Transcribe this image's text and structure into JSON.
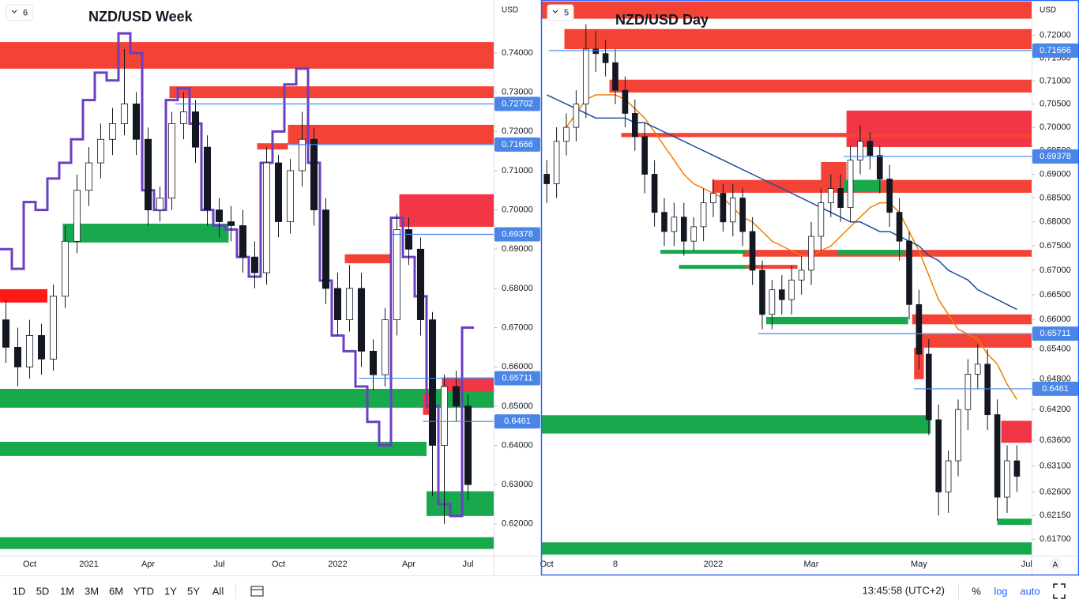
{
  "chart_data": [
    {
      "type": "candlestick",
      "title": "NZD/USD Week",
      "badge": "6",
      "currency": "USD",
      "log_scale": false,
      "grid": false,
      "up_color": "#ffffff",
      "down_color": "#131722",
      "level_color": "#4a86e8",
      "categories": [
        null,
        null,
        "Oct",
        null,
        null,
        null,
        null,
        "2021",
        null,
        null,
        null,
        null,
        "Apr",
        null,
        null,
        null,
        null,
        null,
        "Jul",
        null,
        null,
        null,
        null,
        "Oct",
        null,
        null,
        null,
        null,
        "2022",
        null,
        null,
        null,
        null,
        null,
        "Apr",
        null,
        null,
        null,
        null,
        "Jul"
      ],
      "open": [
        0.672,
        0.665,
        0.66,
        0.668,
        0.662,
        0.678,
        0.692,
        0.705,
        0.712,
        0.718,
        0.722,
        0.727,
        0.718,
        0.7,
        0.703,
        0.722,
        0.725,
        0.716,
        0.7,
        0.697,
        0.696,
        0.688,
        0.684,
        0.712,
        0.697,
        0.71,
        0.718,
        0.7,
        0.68,
        0.672,
        0.68,
        0.664,
        0.658,
        0.672,
        0.695,
        0.69,
        0.672,
        0.64,
        0.655,
        0.65
      ],
      "high": [
        0.677,
        0.67,
        0.672,
        0.671,
        0.681,
        0.696,
        0.709,
        0.716,
        0.722,
        0.726,
        0.741,
        0.73,
        0.721,
        0.706,
        0.725,
        0.73,
        0.728,
        0.719,
        0.703,
        0.701,
        0.7,
        0.692,
        0.716,
        0.714,
        0.713,
        0.725,
        0.721,
        0.703,
        0.684,
        0.686,
        0.684,
        0.667,
        0.675,
        0.699,
        0.698,
        0.693,
        0.674,
        0.658,
        0.659,
        0.653
      ],
      "low": [
        0.661,
        0.655,
        0.657,
        0.658,
        0.659,
        0.675,
        0.689,
        0.701,
        0.708,
        0.714,
        0.719,
        0.714,
        0.696,
        0.697,
        0.7,
        0.718,
        0.712,
        0.696,
        0.693,
        0.692,
        0.684,
        0.68,
        0.681,
        0.693,
        0.694,
        0.706,
        0.696,
        0.676,
        0.668,
        0.669,
        0.66,
        0.654,
        0.655,
        0.668,
        0.686,
        0.668,
        0.627,
        0.62,
        0.646,
        0.626
      ],
      "close": [
        0.665,
        0.66,
        0.668,
        0.662,
        0.678,
        0.692,
        0.705,
        0.712,
        0.718,
        0.722,
        0.727,
        0.718,
        0.7,
        0.703,
        0.722,
        0.725,
        0.716,
        0.7,
        0.697,
        0.696,
        0.688,
        0.684,
        0.712,
        0.697,
        0.71,
        0.718,
        0.7,
        0.68,
        0.672,
        0.68,
        0.664,
        0.658,
        0.672,
        0.695,
        0.69,
        0.672,
        0.64,
        0.655,
        0.65,
        0.63
      ],
      "series": [
        {
          "color": "#6a3fc0",
          "values": [
            0.69,
            0.685,
            0.702,
            0.7,
            0.708,
            0.712,
            0.718,
            0.728,
            0.735,
            0.733,
            0.745,
            0.74,
            0.705,
            0.7,
            0.728,
            0.731,
            0.722,
            0.7,
            0.696,
            0.695,
            0.688,
            0.683,
            0.712,
            0.72,
            0.732,
            0.736,
            0.712,
            0.682,
            0.668,
            0.664,
            0.655,
            0.646,
            0.64,
            0.698,
            0.688,
            0.678,
            0.65,
            0.625,
            0.622,
            0.67
          ]
        }
      ],
      "zones": [
        {
          "from": 0,
          "to": 41.7,
          "low": 0.736,
          "high": 0.7428,
          "color": "#f44336"
        },
        {
          "from": 14.3,
          "to": 41.7,
          "low": 0.7285,
          "high": 0.7315,
          "color": "#f44336"
        },
        {
          "from": 24.3,
          "to": 41.7,
          "low": 0.7168,
          "high": 0.7217,
          "color": "#f44336"
        },
        {
          "from": 21.7,
          "to": 24.3,
          "low": 0.7154,
          "high": 0.717,
          "color": "#f44336"
        },
        {
          "from": 33.7,
          "to": 41.7,
          "low": 0.6957,
          "high": 0.704,
          "color": "#f23645"
        },
        {
          "from": 5.3,
          "to": 19.3,
          "low": 0.6917,
          "high": 0.6965,
          "color": "#18a94d"
        },
        {
          "from": 29.1,
          "to": 33,
          "low": 0.6864,
          "high": 0.6887,
          "color": "#f44336"
        },
        {
          "from": 0,
          "to": 4,
          "low": 0.6764,
          "high": 0.6798,
          "color": "#ff1a1a"
        },
        {
          "from": 0,
          "to": 41.7,
          "low": 0.6496,
          "high": 0.6544,
          "color": "#18a94d"
        },
        {
          "from": 37.3,
          "to": 41.7,
          "low": 0.6538,
          "high": 0.6573,
          "color": "#f23645"
        },
        {
          "from": 35.7,
          "to": 36.3,
          "low": 0.6478,
          "high": 0.6534,
          "color": "#f23645"
        },
        {
          "from": 0,
          "to": 36,
          "low": 0.6373,
          "high": 0.6409,
          "color": "#18a94d"
        },
        {
          "from": 36,
          "to": 41.7,
          "low": 0.622,
          "high": 0.6283,
          "color": "#18a94d"
        },
        {
          "from": 0,
          "to": 41.7,
          "low": 0.6136,
          "high": 0.6166,
          "color": "#18a94d"
        }
      ],
      "levels": [
        {
          "value": 0.72702,
          "from": 14.8
        },
        {
          "value": 0.71666,
          "from": 24.3
        },
        {
          "value": 0.69378,
          "from": 33
        },
        {
          "value": 0.65711,
          "from": 30.3
        },
        {
          "value": 0.6461,
          "from": 35.7
        }
      ],
      "ylim": [
        0.6119,
        0.7535
      ],
      "yticks": [
        {
          "value": 0.74,
          "label": "0.74000"
        },
        {
          "value": 0.73,
          "label": "0.73000"
        },
        {
          "value": 0.72,
          "label": "0.72000"
        },
        {
          "value": 0.71,
          "label": "0.71000"
        },
        {
          "value": 0.7,
          "label": "0.70000"
        },
        {
          "value": 0.69,
          "label": "0.69000"
        },
        {
          "value": 0.68,
          "label": "0.68000"
        },
        {
          "value": 0.67,
          "label": "0.67000"
        },
        {
          "value": 0.66,
          "label": "0.66000"
        },
        {
          "value": 0.65,
          "label": "0.65000"
        },
        {
          "value": 0.64,
          "label": "0.64000"
        },
        {
          "value": 0.63,
          "label": "0.63000"
        },
        {
          "value": 0.62,
          "label": "0.62000"
        }
      ]
    },
    {
      "type": "candlestick",
      "title": "NZD/USD Day",
      "badge": "5",
      "currency": "USD",
      "log_scale": true,
      "grid": false,
      "up_color": "#ffffff",
      "down_color": "#131722",
      "level_color": "#4a86e8",
      "categories": [
        "Oct",
        null,
        null,
        null,
        null,
        null,
        null,
        "8",
        null,
        null,
        null,
        null,
        null,
        null,
        null,
        null,
        null,
        "2022",
        null,
        null,
        null,
        null,
        null,
        null,
        null,
        null,
        null,
        "Mar",
        null,
        null,
        null,
        null,
        null,
        null,
        null,
        null,
        null,
        null,
        "May",
        null,
        null,
        null,
        null,
        null,
        null,
        null,
        null,
        null,
        null,
        "Jul"
      ],
      "open": [
        0.69,
        0.688,
        0.697,
        0.7,
        0.705,
        0.717,
        0.716,
        0.714,
        0.708,
        0.703,
        0.698,
        0.69,
        0.682,
        0.678,
        0.681,
        0.676,
        0.679,
        0.684,
        0.686,
        0.68,
        0.685,
        0.678,
        0.67,
        0.661,
        0.666,
        0.664,
        0.668,
        0.67,
        0.677,
        0.684,
        0.687,
        0.683,
        0.693,
        0.697,
        0.694,
        0.689,
        0.682,
        0.676,
        0.663,
        0.653,
        0.64,
        0.626,
        0.632,
        0.642,
        0.649,
        0.651,
        0.641,
        0.625,
        0.632,
        null
      ],
      "high": [
        0.693,
        0.7,
        0.703,
        0.708,
        0.7225,
        0.721,
        0.719,
        0.717,
        0.711,
        0.706,
        0.701,
        0.693,
        0.685,
        0.684,
        0.684,
        0.681,
        0.687,
        0.689,
        0.688,
        0.688,
        0.687,
        0.681,
        0.672,
        0.668,
        0.669,
        0.671,
        0.673,
        0.68,
        0.687,
        0.69,
        0.69,
        0.696,
        0.7005,
        0.699,
        0.696,
        0.692,
        0.685,
        0.678,
        0.666,
        0.656,
        0.643,
        0.634,
        0.644,
        0.652,
        0.655,
        0.654,
        0.644,
        0.635,
        0.635,
        null
      ],
      "low": [
        0.684,
        0.685,
        0.694,
        0.697,
        0.702,
        0.712,
        0.711,
        0.705,
        0.7,
        0.695,
        0.686,
        0.679,
        0.675,
        0.675,
        0.673,
        0.674,
        0.676,
        0.681,
        0.678,
        0.677,
        0.675,
        0.667,
        0.658,
        0.658,
        0.661,
        0.661,
        0.665,
        0.667,
        0.674,
        0.681,
        0.68,
        0.68,
        0.69,
        0.691,
        0.686,
        0.679,
        0.672,
        0.66,
        0.65,
        0.637,
        0.6215,
        0.622,
        0.629,
        0.638,
        0.646,
        0.638,
        0.6205,
        0.622,
        0.626,
        null
      ],
      "close": [
        0.688,
        0.697,
        0.7,
        0.705,
        0.717,
        0.716,
        0.714,
        0.708,
        0.703,
        0.698,
        0.69,
        0.682,
        0.678,
        0.681,
        0.676,
        0.679,
        0.684,
        0.686,
        0.68,
        0.685,
        0.678,
        0.67,
        0.661,
        0.666,
        0.664,
        0.668,
        0.67,
        0.677,
        0.684,
        0.687,
        0.683,
        0.693,
        0.697,
        0.694,
        0.689,
        0.682,
        0.676,
        0.663,
        0.653,
        0.64,
        0.626,
        0.632,
        0.642,
        0.649,
        0.651,
        0.641,
        0.625,
        0.632,
        0.629,
        null
      ],
      "series": [
        {
          "color": "#f57c00",
          "values": [
            null,
            null,
            0.7,
            0.703,
            0.706,
            0.707,
            0.707,
            0.707,
            0.706,
            0.704,
            0.702,
            0.699,
            0.696,
            0.693,
            0.69,
            0.688,
            0.687,
            0.686,
            0.685,
            0.683,
            0.681,
            0.68,
            0.678,
            0.676,
            0.675,
            0.674,
            0.673,
            0.673,
            0.674,
            0.675,
            0.677,
            0.679,
            0.681,
            0.683,
            0.684,
            0.684,
            0.682,
            0.678,
            0.674,
            0.669,
            0.664,
            0.661,
            0.658,
            0.657,
            0.656,
            0.653,
            0.651,
            0.647,
            0.644,
            null
          ]
        },
        {
          "color": "#1a4d9e",
          "values": [
            0.707,
            0.706,
            0.705,
            0.704,
            0.703,
            0.702,
            0.702,
            0.702,
            0.702,
            0.701,
            0.701,
            0.7,
            0.699,
            0.698,
            0.697,
            0.696,
            0.695,
            0.694,
            0.693,
            0.692,
            0.691,
            0.69,
            0.689,
            0.688,
            0.687,
            0.686,
            0.685,
            0.684,
            0.683,
            0.682,
            0.681,
            0.68,
            0.68,
            0.679,
            0.678,
            0.678,
            0.677,
            0.676,
            0.675,
            0.673,
            0.672,
            0.67,
            0.669,
            0.668,
            0.666,
            0.665,
            0.664,
            0.663,
            0.662,
            null
          ]
        }
      ],
      "zones": [
        {
          "from": 0,
          "to": 50,
          "low": 0.7237,
          "high": 0.7275,
          "color": "#f44336"
        },
        {
          "from": 2.3,
          "to": 50,
          "low": 0.717,
          "high": 0.7214,
          "color": "#f44336"
        },
        {
          "from": 6.9,
          "to": 50,
          "low": 0.7075,
          "high": 0.7103,
          "color": "#f44336"
        },
        {
          "from": 31.1,
          "to": 50,
          "low": 0.6958,
          "high": 0.7036,
          "color": "#f23645"
        },
        {
          "from": 8.1,
          "to": 50,
          "low": 0.6979,
          "high": 0.6988,
          "color": "#f44336"
        },
        {
          "from": 28.5,
          "to": 31.1,
          "low": 0.6864,
          "high": 0.6926,
          "color": "#f44336"
        },
        {
          "from": 17.4,
          "to": 50,
          "low": 0.6861,
          "high": 0.6888,
          "color": "#f44336"
        },
        {
          "from": 30.8,
          "to": 34.6,
          "low": 0.6864,
          "high": 0.6888,
          "color": "#18a94d"
        },
        {
          "from": 20.5,
          "to": 50,
          "low": 0.6728,
          "high": 0.6742,
          "color": "#f44336"
        },
        {
          "from": 12.1,
          "to": 20.9,
          "low": 0.6734,
          "high": 0.6742,
          "color": "#18a94d"
        },
        {
          "from": 14,
          "to": 20.9,
          "low": 0.6703,
          "high": 0.6711,
          "color": "#18a94d"
        },
        {
          "from": 30.2,
          "to": 37,
          "low": 0.6732,
          "high": 0.6742,
          "color": "#18a94d"
        },
        {
          "from": 20.9,
          "to": 26.1,
          "low": 0.6703,
          "high": 0.6711,
          "color": "#f44336"
        },
        {
          "from": 22.9,
          "to": 37.4,
          "low": 0.659,
          "high": 0.6605,
          "color": "#18a94d"
        },
        {
          "from": 37.8,
          "to": 50,
          "low": 0.659,
          "high": 0.661,
          "color": "#f44336"
        },
        {
          "from": 38.6,
          "to": 50,
          "low": 0.6543,
          "high": 0.657,
          "color": "#f44336"
        },
        {
          "from": 38,
          "to": 39,
          "low": 0.648,
          "high": 0.6543,
          "color": "#f44336"
        },
        {
          "from": 0,
          "to": 39.7,
          "low": 0.6373,
          "high": 0.6409,
          "color": "#18a94d"
        },
        {
          "from": 46.9,
          "to": 50,
          "low": 0.6355,
          "high": 0.6398,
          "color": "#f23645"
        },
        {
          "from": 46.5,
          "to": 50,
          "low": 0.6197,
          "high": 0.6209,
          "color": "#18a94d"
        },
        {
          "from": 0,
          "to": 50,
          "low": 0.6141,
          "high": 0.6164,
          "color": "#18a94d"
        }
      ],
      "levels": [
        {
          "value": 0.71666,
          "from": 0.7
        },
        {
          "value": 0.69378,
          "from": 30.8
        },
        {
          "value": 0.65711,
          "from": 22.1
        },
        {
          "value": 0.6461,
          "from": 38
        }
      ],
      "ylim": [
        0.6139,
        0.7275
      ],
      "yticks": [
        {
          "value": 0.72,
          "label": "0.72000"
        },
        {
          "value": 0.715,
          "label": "0.71500"
        },
        {
          "value": 0.71,
          "label": "0.71000"
        },
        {
          "value": 0.705,
          "label": "0.70500"
        },
        {
          "value": 0.7,
          "label": "0.70000"
        },
        {
          "value": 0.695,
          "label": "0.69500"
        },
        {
          "value": 0.69,
          "label": "0.69000"
        },
        {
          "value": 0.685,
          "label": "0.68500"
        },
        {
          "value": 0.68,
          "label": "0.68000"
        },
        {
          "value": 0.675,
          "label": "0.67500"
        },
        {
          "value": 0.67,
          "label": "0.67000"
        },
        {
          "value": 0.665,
          "label": "0.66500"
        },
        {
          "value": 0.66,
          "label": "0.66000"
        },
        {
          "value": 0.654,
          "label": "0.65400"
        },
        {
          "value": 0.648,
          "label": "0.64800"
        },
        {
          "value": 0.642,
          "label": "0.64200"
        },
        {
          "value": 0.636,
          "label": "0.63600"
        },
        {
          "value": 0.631,
          "label": "0.63100"
        },
        {
          "value": 0.626,
          "label": "0.62600"
        },
        {
          "value": 0.6215,
          "label": "0.62150"
        },
        {
          "value": 0.617,
          "label": "0.61700"
        }
      ]
    }
  ],
  "toolbar": {
    "timeframes": [
      "1D",
      "5D",
      "1M",
      "3M",
      "6M",
      "YTD",
      "1Y",
      "5Y",
      "All"
    ],
    "clock": "13:45:58 (UTC+2)",
    "scale_buttons": [
      "%",
      "log",
      "auto"
    ],
    "axis_button": "A"
  }
}
